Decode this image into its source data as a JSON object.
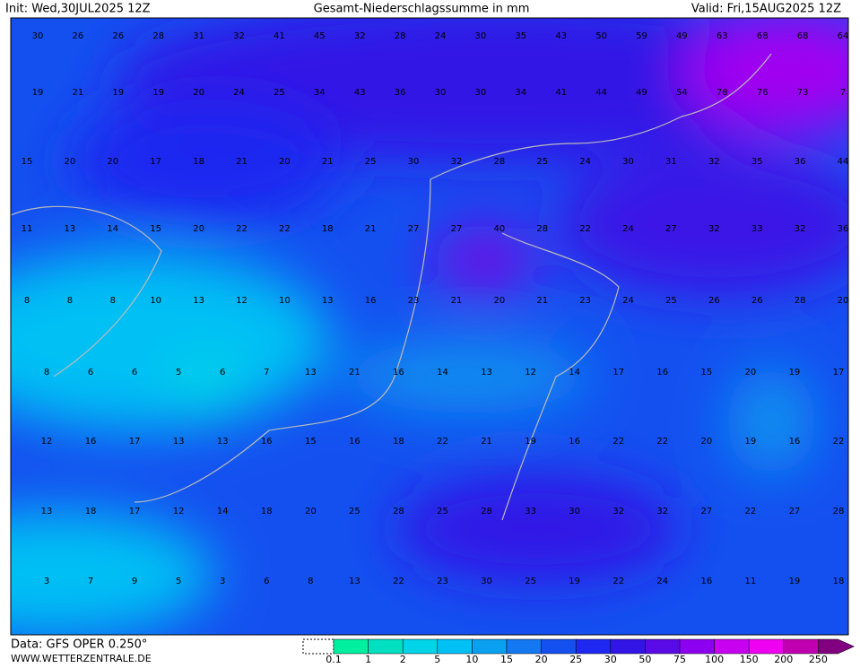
{
  "header": {
    "init": "Init: Wed,30JUL2025 12Z",
    "title": "Gesamt-Niederschlagssumme in mm",
    "valid": "Valid: Fri,15AUG2025 12Z"
  },
  "grid_values": [
    [
      30,
      26,
      26,
      28,
      31,
      32,
      41,
      45,
      32,
      28,
      24,
      30,
      35,
      43,
      50,
      59,
      49,
      63,
      68,
      68,
      64
    ],
    [
      19,
      21,
      19,
      19,
      20,
      24,
      25,
      34,
      43,
      36,
      30,
      30,
      34,
      41,
      44,
      49,
      54,
      78,
      76,
      73,
      7
    ],
    [
      15,
      20,
      20,
      17,
      18,
      21,
      20,
      21,
      25,
      30,
      32,
      28,
      25,
      24,
      30,
      31,
      32,
      35,
      36,
      44
    ],
    [
      11,
      13,
      14,
      15,
      20,
      22,
      22,
      18,
      21,
      27,
      27,
      40,
      28,
      22,
      24,
      27,
      32,
      33,
      32,
      36
    ],
    [
      8,
      8,
      8,
      10,
      13,
      12,
      10,
      13,
      16,
      23,
      21,
      20,
      21,
      23,
      24,
      25,
      26,
      26,
      28,
      20
    ],
    [
      8,
      6,
      6,
      5,
      6,
      7,
      13,
      21,
      16,
      14,
      13,
      12,
      14,
      17,
      16,
      15,
      20,
      19,
      17
    ],
    [
      12,
      16,
      17,
      13,
      13,
      16,
      15,
      16,
      18,
      22,
      21,
      19,
      16,
      22,
      22,
      20,
      19,
      16,
      22
    ],
    [
      13,
      18,
      17,
      12,
      14,
      18,
      20,
      25,
      28,
      25,
      28,
      33,
      30,
      32,
      32,
      27,
      22,
      27,
      28
    ],
    [
      3,
      7,
      9,
      5,
      3,
      6,
      8,
      13,
      22,
      23,
      30,
      25,
      19,
      22,
      24,
      16,
      11,
      19,
      18
    ]
  ],
  "footer": {
    "data": "Data: GFS OPER 0.250°",
    "site": "WWW.WETTERZENTRALE.DE"
  },
  "legend": {
    "labels": [
      0.1,
      1,
      2,
      5,
      10,
      15,
      20,
      25,
      30,
      50,
      75,
      100,
      150,
      200,
      250
    ],
    "colors": [
      "#00f0a0",
      "#00e0c0",
      "#00d4e8",
      "#00c0f4",
      "#0aa0f0",
      "#1478f0",
      "#1450f0",
      "#1e28f0",
      "#3214e6",
      "#5a0ae6",
      "#8c00f0",
      "#c800f0",
      "#f000f0",
      "#c000b0",
      "#800080"
    ]
  }
}
